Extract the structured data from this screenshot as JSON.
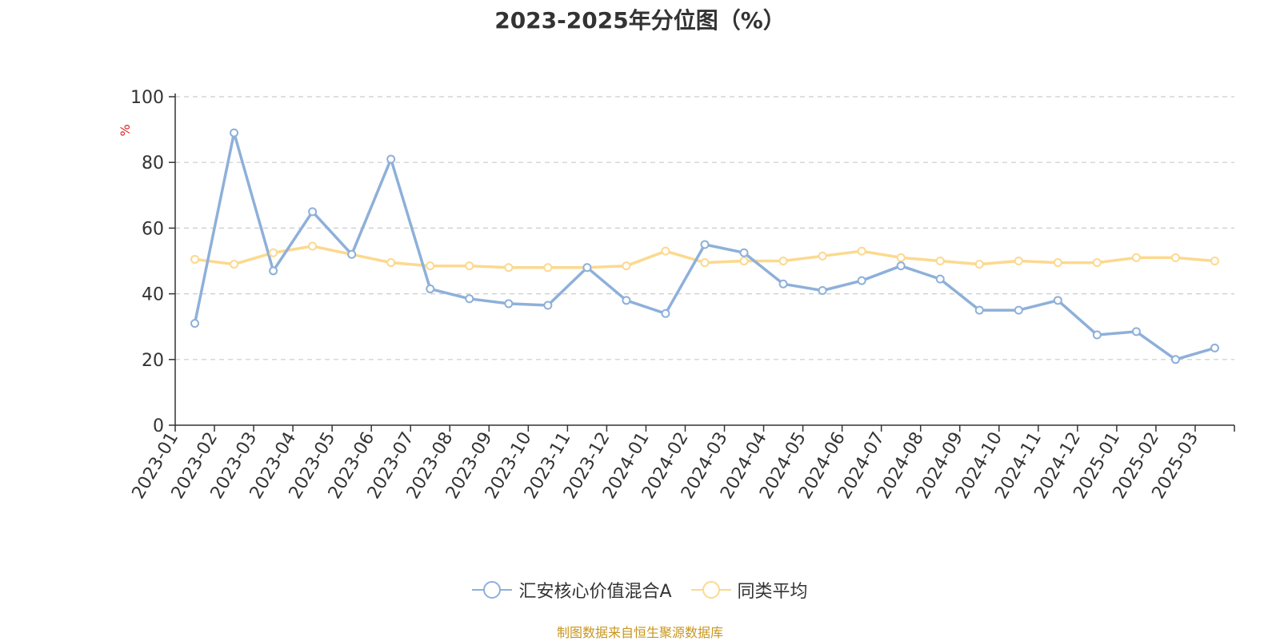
{
  "chart_data": {
    "type": "line",
    "title": "2023-2025年分位图（%）",
    "ylabel": "%",
    "ylim": [
      0,
      100
    ],
    "yticks": [
      0,
      20,
      40,
      60,
      80,
      100
    ],
    "grid": true,
    "legend_position": "bottom-center",
    "categories": [
      "2023-01",
      "2023-02",
      "2023-03",
      "2023-04",
      "2023-05",
      "2023-06",
      "2023-07",
      "2023-08",
      "2023-09",
      "2023-10",
      "2023-11",
      "2023-12",
      "2024-01",
      "2024-02",
      "2024-03",
      "2024-04",
      "2024-05",
      "2024-06",
      "2024-07",
      "2024-08",
      "2024-09",
      "2024-10",
      "2024-11",
      "2024-12",
      "2025-01",
      "2025-02",
      "2025-03"
    ],
    "series": [
      {
        "name": "汇安核心价值混合A",
        "color": "#8eb0d9",
        "values": [
          31,
          89,
          47,
          65,
          52,
          81,
          41.5,
          38.5,
          37,
          36.5,
          48,
          38,
          34,
          55,
          52.5,
          43,
          41,
          44,
          48.5,
          44.5,
          35,
          35,
          38,
          27.5,
          28.5,
          20,
          23.5
        ]
      },
      {
        "name": "同类平均",
        "color": "#fcd98f",
        "values": [
          50.5,
          49,
          52.5,
          54.5,
          52,
          49.5,
          48.5,
          48.5,
          48,
          48,
          48,
          48.5,
          53,
          49.5,
          50,
          50,
          51.5,
          53,
          51,
          50,
          49,
          50,
          49.5,
          49.5,
          51,
          51,
          50
        ]
      }
    ]
  },
  "source_note": "制图数据来自恒生聚源数据库",
  "colors": {
    "axis": "#333333",
    "grid": "#cccccc",
    "ylabel": "#e02020",
    "title": "#333333",
    "source": "#c8961e"
  }
}
